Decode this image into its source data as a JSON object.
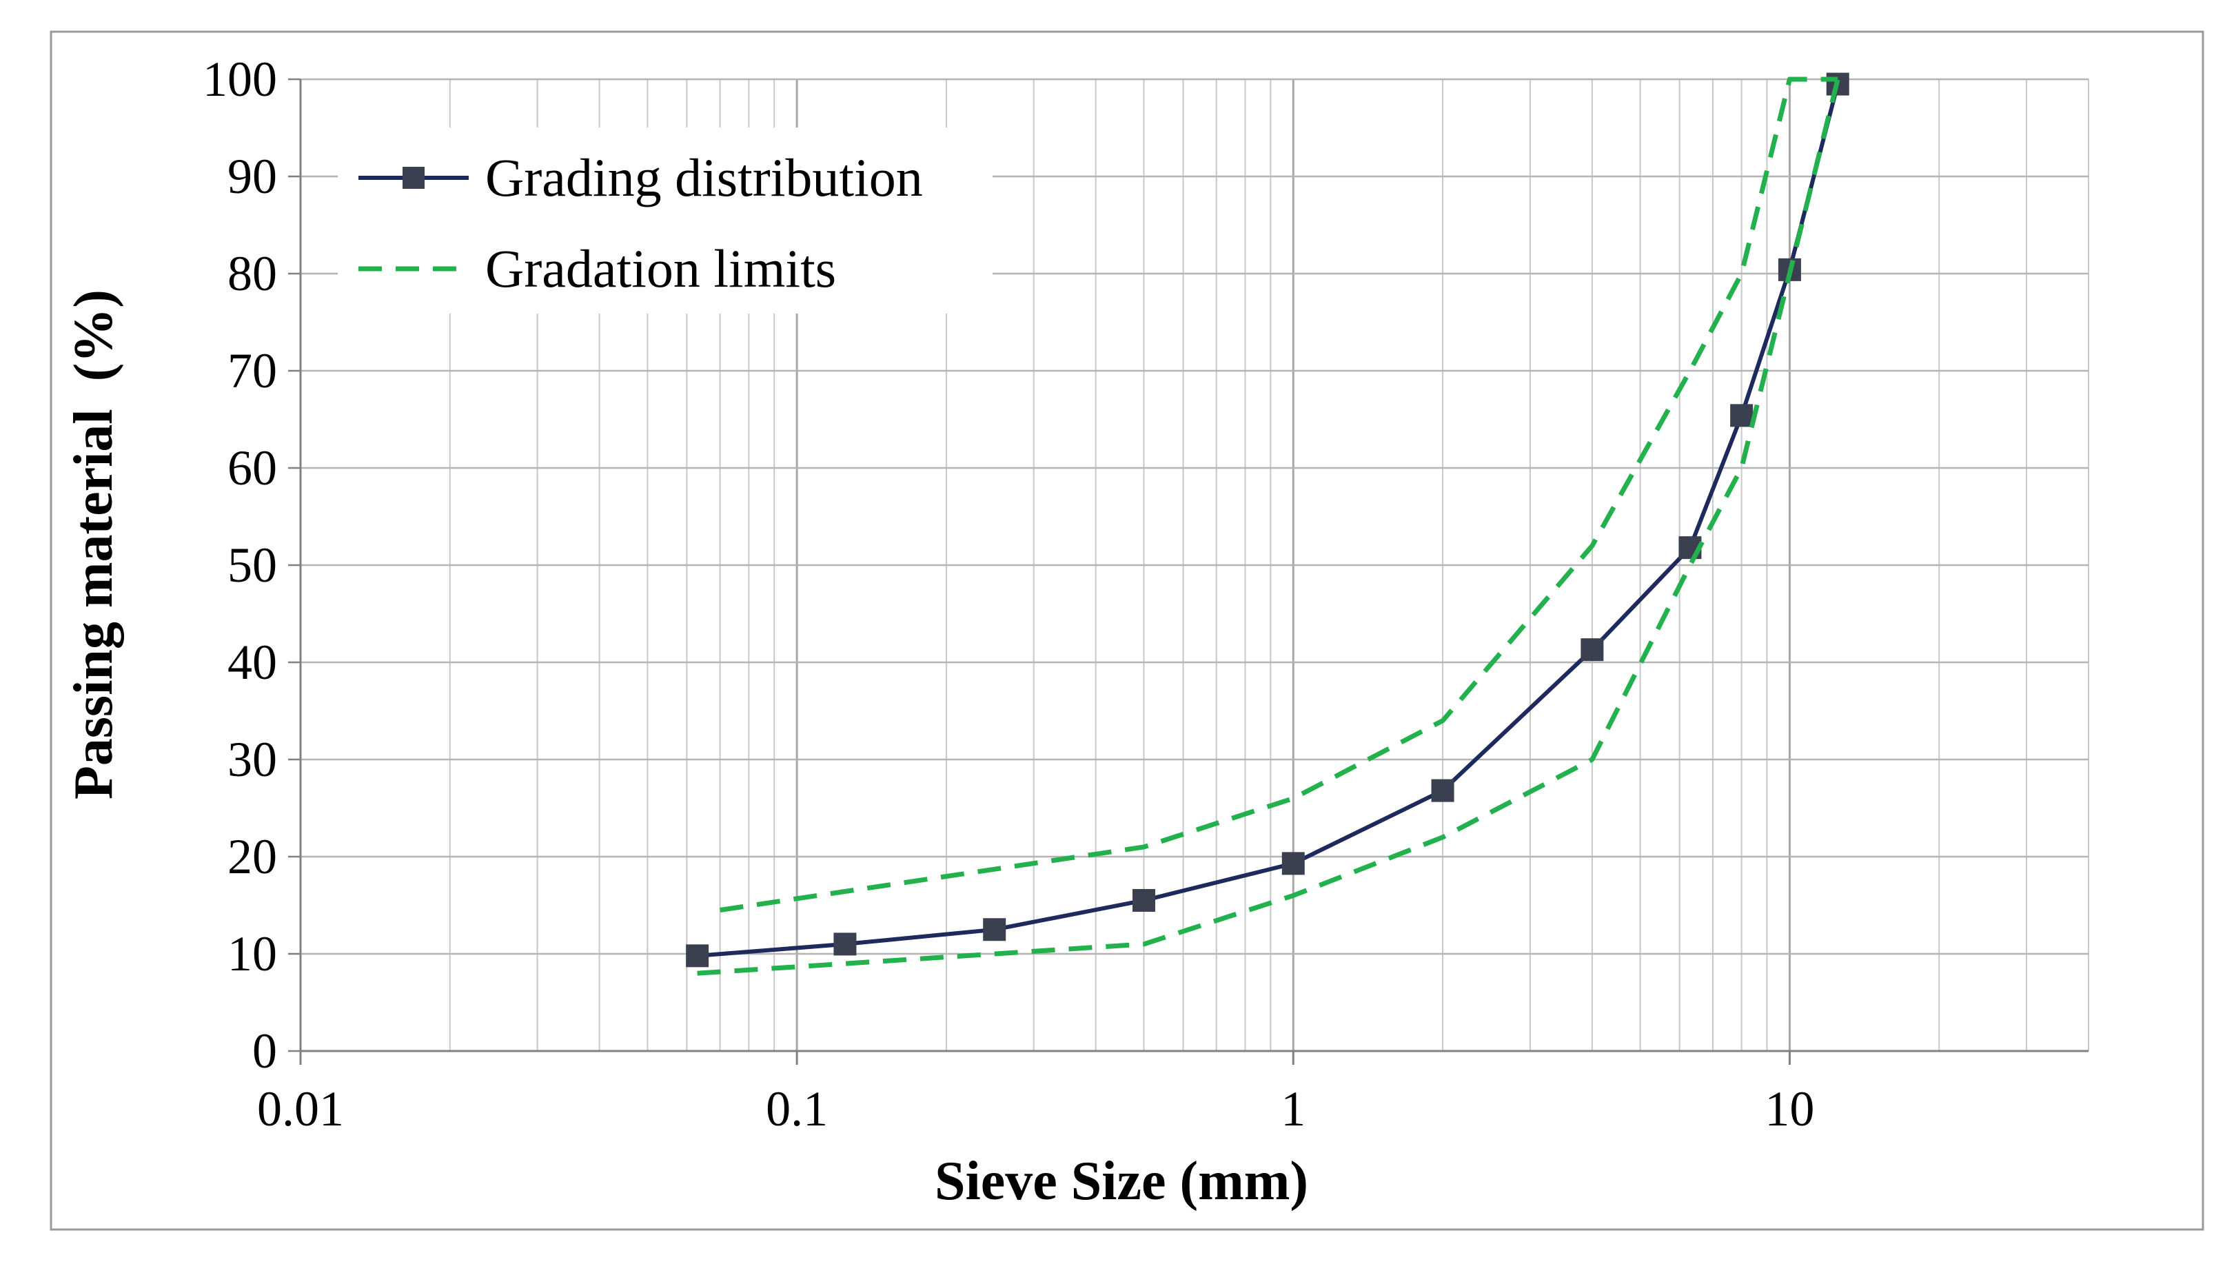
{
  "chart_data": {
    "type": "line",
    "x_scale": "log",
    "xlabel": "Sieve Size (mm)",
    "ylabel": "Passing material  (%)",
    "xlim": [
      0.01,
      40
    ],
    "ylim": [
      0,
      100
    ],
    "x_ticks": [
      0.01,
      0.1,
      1,
      10
    ],
    "x_tick_labels": [
      "0.01",
      "0.1",
      "1",
      "10"
    ],
    "y_ticks": [
      0,
      10,
      20,
      30,
      40,
      50,
      60,
      70,
      80,
      90,
      100
    ],
    "y_tick_labels": [
      "0",
      "10",
      "20",
      "30",
      "40",
      "50",
      "60",
      "70",
      "80",
      "90",
      "100"
    ],
    "grid": true,
    "legend_position": "top-left",
    "series": [
      {
        "name": "Grading distribution",
        "style": "solid-with-square-markers",
        "color": "#1F2A5C",
        "marker_color": "#3A4050",
        "x": [
          0.063,
          0.125,
          0.25,
          0.5,
          1,
          2,
          4,
          6.3,
          8,
          10,
          12.5
        ],
        "y": [
          9.8,
          11.0,
          12.5,
          15.5,
          19.3,
          26.8,
          41.3,
          51.8,
          65.4,
          80.4,
          99.5
        ]
      },
      {
        "name": "Gradation limits",
        "style": "dashed",
        "color": "#22B14C",
        "x": [
          0.07,
          0.5,
          1,
          2,
          4,
          6.3,
          8,
          10,
          12.5
        ],
        "y": [
          14.5,
          21,
          26,
          34,
          52,
          70,
          80,
          100,
          100
        ]
      },
      {
        "name": "Gradation limits (lower)",
        "legend": false,
        "style": "dashed",
        "color": "#22B14C",
        "x": [
          0.063,
          0.5,
          1,
          2,
          4,
          6.3,
          8,
          10,
          12.5
        ],
        "y": [
          8,
          11,
          16,
          22,
          30,
          50,
          60,
          80,
          100
        ]
      }
    ]
  }
}
